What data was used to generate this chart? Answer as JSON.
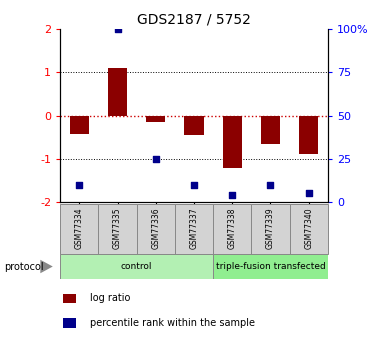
{
  "title": "GDS2187 / 5752",
  "samples": [
    "GSM77334",
    "GSM77335",
    "GSM77336",
    "GSM77337",
    "GSM77338",
    "GSM77339",
    "GSM77340"
  ],
  "log_ratio": [
    -0.42,
    1.1,
    -0.15,
    -0.45,
    -1.22,
    -0.65,
    -0.9
  ],
  "percentile_rank_pct": [
    10,
    100,
    25,
    10,
    4,
    10,
    5
  ],
  "groups": [
    {
      "label": "control",
      "start": 0,
      "end": 3,
      "color": "#b3f0b3"
    },
    {
      "label": "triple-fusion transfected",
      "start": 4,
      "end": 6,
      "color": "#90ee90"
    }
  ],
  "ylim": [
    -2,
    2
  ],
  "yticks_left": [
    -2,
    -1,
    0,
    1,
    2
  ],
  "yticks_right_vals": [
    0,
    25,
    50,
    75,
    100
  ],
  "bar_color": "#8B0000",
  "dot_color": "#00008B",
  "zero_line_color": "#cc0000",
  "grid_color": "#000000",
  "bg_color": "#ffffff",
  "legend_items": [
    {
      "label": "log ratio",
      "color": "#8B0000"
    },
    {
      "label": "percentile rank within the sample",
      "color": "#00008B"
    }
  ],
  "protocol_label": "protocol",
  "figsize": [
    3.88,
    3.45
  ],
  "dpi": 100
}
